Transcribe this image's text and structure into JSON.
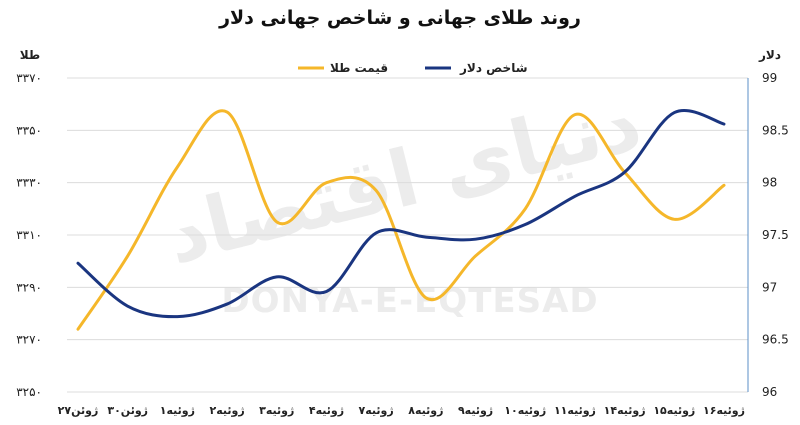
{
  "chart_data": {
    "type": "line",
    "title": "روند طلای جهانی و شاخص جهانی دلار",
    "watermark": {
      "fa": "دنیای اقتصاد",
      "en": "DONYA-E-EQTESAD"
    },
    "categories": [
      "۲۷ژوئن",
      "۳۰ژوئن",
      "۱ژوئیه",
      "۲ژوئیه",
      "۳ژوئیه",
      "۴ژوئیه",
      "۷ژوئیه",
      "۸ژوئیه",
      "۹ژوئیه",
      "۱۰ژوئیه",
      "۱۱ژوئیه",
      "۱۴ژوئیه",
      "۱۵ژوئیه",
      "۱۶ژوئیه"
    ],
    "y_left": {
      "label": "طلا",
      "ticks": [
        "۳۳۷۰",
        "۳۳۵۰",
        "۳۳۳۰",
        "۳۳۱۰",
        "۳۲۹۰",
        "۳۲۷۰",
        "۳۲۵۰"
      ],
      "ylim": [
        3250,
        3370
      ]
    },
    "y_right": {
      "label": "دلار",
      "ticks": [
        "99",
        "98.5",
        "98",
        "97.5",
        "97",
        "96.5",
        "96"
      ],
      "ylim": [
        96,
        99
      ]
    },
    "series": [
      {
        "name": "قیمت طلا",
        "axis": "left",
        "color": "#f5b72a",
        "values": [
          3274,
          3302,
          3336,
          3357,
          3315,
          3330,
          3327,
          3286,
          3302,
          3320,
          3356,
          3334,
          3316,
          3329
        ]
      },
      {
        "name": "شاخص دلار",
        "axis": "right",
        "color": "#1a3580",
        "values": [
          97.23,
          96.82,
          96.72,
          96.84,
          97.1,
          96.96,
          97.52,
          97.48,
          97.46,
          97.6,
          97.87,
          98.1,
          98.67,
          98.56
        ]
      }
    ],
    "legend_position": "top-center",
    "grid": "horizontal"
  }
}
